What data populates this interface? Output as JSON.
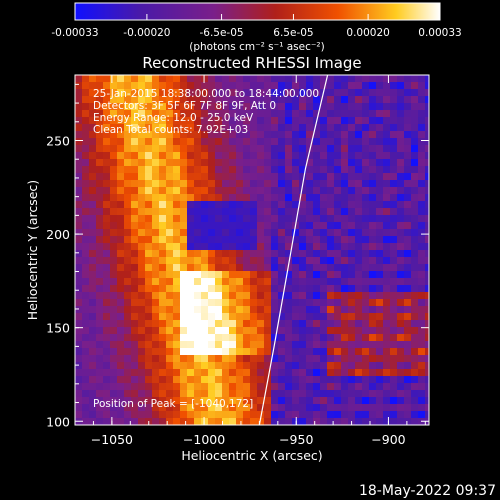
{
  "colorbar": {
    "tick_labels": [
      "-0.00033",
      "-0.00020",
      "-6.5e-05",
      "6.5e-05",
      "0.00020",
      "0.00033"
    ],
    "tick_values": [
      -0.00033,
      -0.0002,
      -6.5e-05,
      6.5e-05,
      0.0002,
      0.00033
    ],
    "range": [
      -0.00033,
      0.00033
    ],
    "unit_label": "(photons cm⁻² s⁻¹ asec⁻²)",
    "colormap_stops": [
      "#1010ff",
      "#4a1aa8",
      "#7a1f8a",
      "#b0201a",
      "#f05000",
      "#ffcc20",
      "#ffffff"
    ]
  },
  "chart_data": {
    "type": "heatmap",
    "title": "Reconstructed RHESSI Image",
    "xlabel": "Heliocentric X (arcsec)",
    "ylabel": "Heliocentric Y (arcsec)",
    "xlim": [
      -1070,
      -878
    ],
    "ylim": [
      98,
      285
    ],
    "xticks": [
      -1050,
      -1000,
      -950,
      -900
    ],
    "xtick_labels": [
      "−1050",
      "−1000",
      "−950",
      "−900"
    ],
    "yticks": [
      100,
      150,
      200,
      250
    ],
    "ytick_labels": [
      "100",
      "150",
      "200",
      "250"
    ],
    "limb_curve": [
      [
        -970,
        98
      ],
      [
        -962,
        140
      ],
      [
        -953,
        190
      ],
      [
        -945,
        235
      ],
      [
        -933,
        285
      ]
    ],
    "info_lines": [
      "25-Jan-2015 18:38:00.000 to 18:44:00.000",
      "Detectors: 3F 5F 6F 7F 8F 9F, Att 0",
      "Energy Range: 12.0 - 25.0 keV",
      "Clean     Total counts: 7.92E+03"
    ],
    "peak_label": "Position of Peak = [-1040,172]",
    "peak": [
      -1040,
      172
    ]
  },
  "footer_timestamp": "18-May-2022 09:37"
}
